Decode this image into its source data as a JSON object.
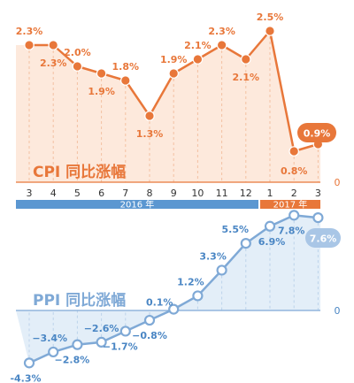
{
  "chart_data": [
    {
      "type": "line",
      "title": "CPI 同比涨幅",
      "categories": [
        "3",
        "4",
        "5",
        "6",
        "7",
        "8",
        "9",
        "10",
        "11",
        "12",
        "1",
        "2",
        "3"
      ],
      "years": [
        {
          "label": "2016 年",
          "color": "#5b97d1"
        },
        {
          "label": "2017 年",
          "color": "#e8773a"
        }
      ],
      "zero_label": "0",
      "series": [
        {
          "values": [
            2.3,
            2.3,
            2.0,
            1.9,
            1.8,
            1.3,
            1.9,
            2.1,
            2.3,
            2.1,
            2.5,
            0.8,
            0.9
          ],
          "labels": [
            "2.3%",
            "2.3%",
            "2.0%",
            "1.9%",
            "1.8%",
            "1.3%",
            "1.9%",
            "2.1%",
            "2.3%",
            "2.1%",
            "2.5%",
            "0.8%",
            "0.9%"
          ],
          "color": "#e8773a",
          "fill": "#fde5d6"
        }
      ]
    },
    {
      "type": "line",
      "title": "PPI 同比涨幅",
      "categories": [
        "3",
        "4",
        "5",
        "6",
        "7",
        "8",
        "9",
        "10",
        "11",
        "12",
        "1",
        "2",
        "3"
      ],
      "zero_label": "0",
      "series": [
        {
          "values": [
            -4.3,
            -3.4,
            -2.8,
            -2.6,
            -1.7,
            -0.8,
            0.1,
            1.2,
            3.3,
            5.5,
            6.9,
            7.8,
            7.6
          ],
          "labels": [
            "-4.3%",
            "−3.4%",
            "−2.8%",
            "−2.6%",
            "−1.7%",
            "−0.8%",
            "0.1%",
            "1.2%",
            "3.3%",
            "5.5%",
            "6.9%",
            "7.8%",
            "7.6%"
          ],
          "color": "#7fa9d6",
          "fill": "#deebf7"
        }
      ]
    }
  ]
}
